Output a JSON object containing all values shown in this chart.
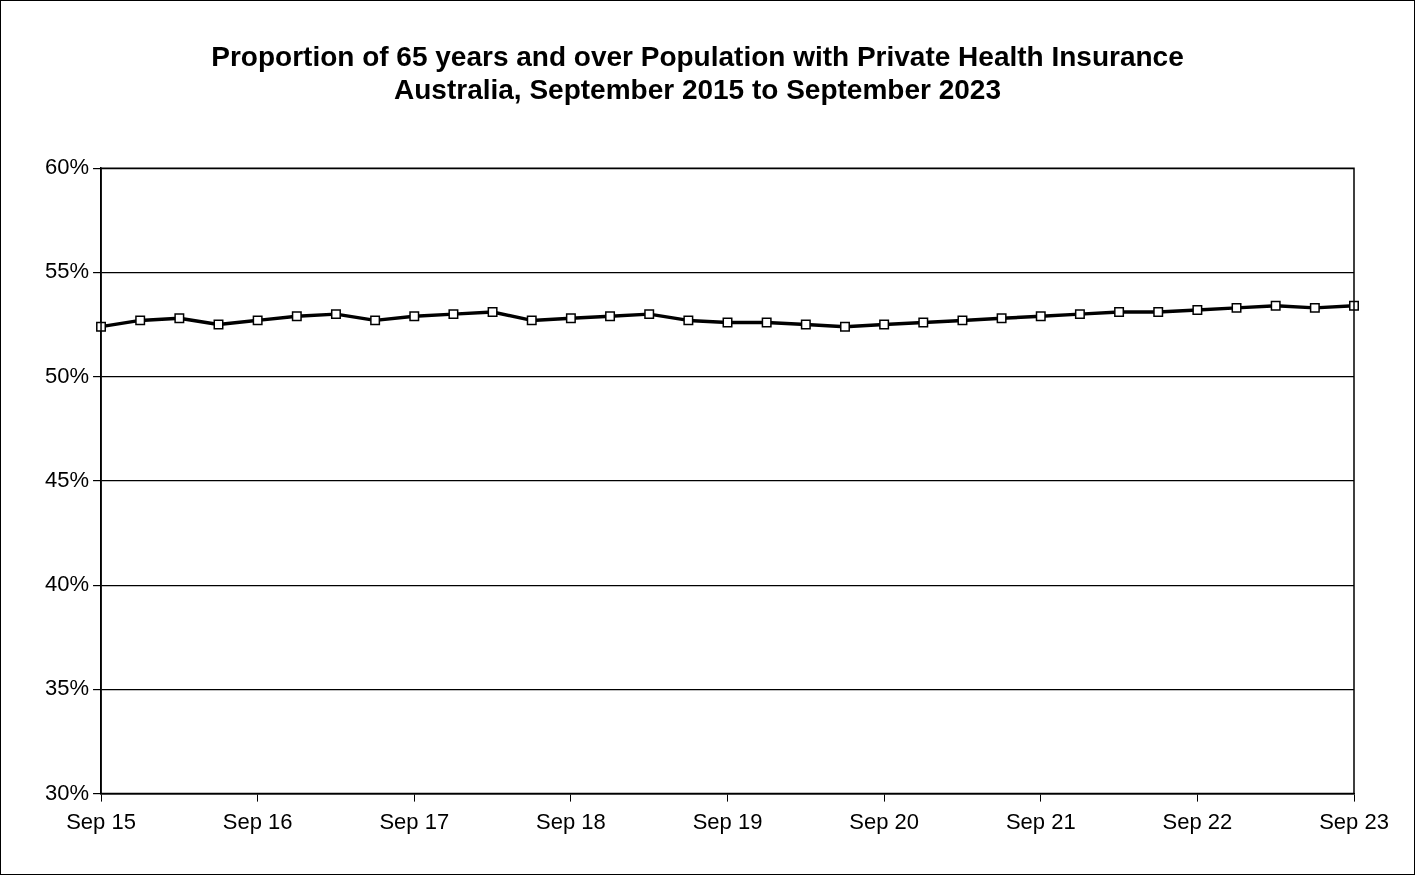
{
  "chart_data": {
    "type": "line",
    "title": [
      "Proportion of 65 years and over Population with Private Health Insurance",
      "Australia, September 2015 to September 2023"
    ],
    "categories": [
      "Sep 15",
      null,
      null,
      null,
      "Sep 16",
      null,
      null,
      null,
      "Sep 17",
      null,
      null,
      null,
      "Sep 18",
      null,
      null,
      null,
      "Sep 19",
      null,
      null,
      null,
      "Sep 20",
      null,
      null,
      null,
      "Sep 21",
      null,
      null,
      null,
      "Sep 22",
      null,
      null,
      null,
      "Sep 23"
    ],
    "series": [
      {
        "color": "#000000",
        "values": [
          52.4,
          52.7,
          52.8,
          52.5,
          52.7,
          52.9,
          53.0,
          52.7,
          52.9,
          53.0,
          53.1,
          52.7,
          52.8,
          52.9,
          53.0,
          52.7,
          52.6,
          52.6,
          52.5,
          52.4,
          52.5,
          52.6,
          52.7,
          52.8,
          52.9,
          53.0,
          53.1,
          53.1,
          53.2,
          53.3,
          53.4,
          53.3,
          53.4
        ]
      }
    ],
    "ylim": [
      30,
      60
    ],
    "yticks": [
      {
        "value": 30,
        "label": "30%"
      },
      {
        "value": 35,
        "label": "35%"
      },
      {
        "value": 40,
        "label": "40%"
      },
      {
        "value": 45,
        "label": "45%"
      },
      {
        "value": 50,
        "label": "50%"
      },
      {
        "value": 55,
        "label": "55%"
      },
      {
        "value": 60,
        "label": "60%"
      }
    ],
    "grid": "y",
    "legend": false,
    "marker": "square",
    "line_style": "solid"
  }
}
